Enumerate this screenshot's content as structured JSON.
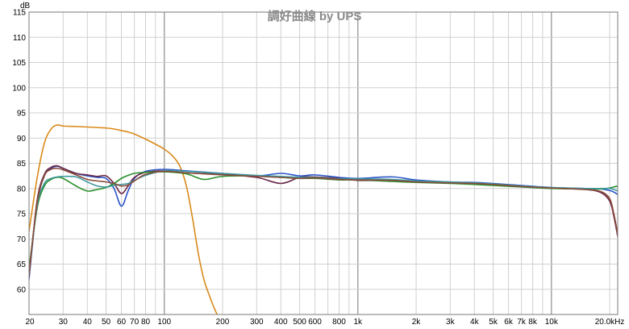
{
  "chart_data": {
    "type": "line",
    "title": "調好曲線 by UPS",
    "y_unit": "dB",
    "x_scale": "log",
    "xlim": [
      20,
      22000
    ],
    "ylim": [
      55,
      115
    ],
    "grid": true,
    "x_ticks": [
      {
        "value": 20,
        "label": "20"
      },
      {
        "value": 30,
        "label": "30"
      },
      {
        "value": 40,
        "label": "40"
      },
      {
        "value": 50,
        "label": "50"
      },
      {
        "value": 60,
        "label": "60"
      },
      {
        "value": 70,
        "label": "70"
      },
      {
        "value": 80,
        "label": "80"
      },
      {
        "value": 100,
        "label": "100"
      },
      {
        "value": 200,
        "label": "200"
      },
      {
        "value": 300,
        "label": "300"
      },
      {
        "value": 400,
        "label": "400"
      },
      {
        "value": 500,
        "label": "500"
      },
      {
        "value": 600,
        "label": "600"
      },
      {
        "value": 800,
        "label": "800"
      },
      {
        "value": 1000,
        "label": "1k"
      },
      {
        "value": 2000,
        "label": "2k"
      },
      {
        "value": 3000,
        "label": "3k"
      },
      {
        "value": 4000,
        "label": "4k"
      },
      {
        "value": 5000,
        "label": "5k"
      },
      {
        "value": 6000,
        "label": "6k"
      },
      {
        "value": 7000,
        "label": "7k"
      },
      {
        "value": 8000,
        "label": "8k"
      },
      {
        "value": 10000,
        "label": "10k"
      },
      {
        "value": 20000,
        "label": "20.0kHz"
      }
    ],
    "y_ticks": [
      60,
      65,
      70,
      75,
      80,
      85,
      90,
      95,
      100,
      105,
      110,
      115
    ],
    "series": [
      {
        "color": "#d98a1a",
        "x": [
          20,
          22,
          24,
          26,
          28,
          30,
          35,
          40,
          45,
          50,
          55,
          60,
          65,
          70,
          80,
          90,
          100,
          110,
          120,
          130,
          140,
          150,
          160,
          170,
          180,
          190
        ],
        "y": [
          71.5,
          82,
          89,
          91.8,
          92.6,
          92.4,
          92.3,
          92.2,
          92.1,
          92,
          91.8,
          91.5,
          91.2,
          90.8,
          89.8,
          88.8,
          87.8,
          86.5,
          84.5,
          80.5,
          74,
          67,
          62,
          59,
          56.5,
          54.5
        ]
      },
      {
        "color": "#2a55c8",
        "x": [
          20,
          22,
          24,
          26,
          28,
          30,
          35,
          40,
          45,
          50,
          55,
          60,
          65,
          70,
          80,
          100,
          130,
          200,
          300,
          400,
          500,
          600,
          800,
          1000,
          1500,
          2000,
          3000,
          4000,
          5000,
          7000,
          10000,
          15000,
          18000,
          20000,
          21000,
          22000
        ],
        "y": [
          62,
          77,
          82.5,
          84,
          84.4,
          84,
          83,
          82.5,
          82.2,
          82,
          80,
          76.5,
          79.5,
          82,
          83.4,
          83.8,
          83.5,
          83,
          82.5,
          83,
          82.5,
          82.7,
          82.2,
          82,
          82.3,
          81.7,
          81.3,
          81.2,
          81,
          80.6,
          80.2,
          80,
          79.9,
          79.6,
          79.3,
          78.8
        ]
      },
      {
        "color": "#6a2848",
        "x": [
          20,
          22,
          24,
          26,
          28,
          30,
          35,
          40,
          45,
          50,
          55,
          60,
          65,
          70,
          80,
          100,
          130,
          200,
          300,
          400,
          500,
          600,
          800,
          1000,
          1500,
          2000,
          3000,
          4000,
          5000,
          7000,
          10000,
          15000,
          18000,
          20000,
          21000,
          22000
        ],
        "y": [
          62.5,
          77.5,
          82.8,
          84.2,
          84.5,
          84,
          83,
          82.7,
          82.4,
          82.5,
          81,
          79,
          80.5,
          82.2,
          83.2,
          83.5,
          83.1,
          82.8,
          82.2,
          81,
          82.2,
          82.3,
          82,
          81.6,
          81.6,
          81.3,
          81.2,
          81,
          80.8,
          80.4,
          80.1,
          79.8,
          79.2,
          77.5,
          74.5,
          70.5
        ]
      },
      {
        "color": "#2a8f2a",
        "x": [
          20,
          22,
          24,
          26,
          28,
          30,
          35,
          40,
          45,
          50,
          55,
          60,
          65,
          70,
          80,
          100,
          130,
          160,
          200,
          300,
          400,
          500,
          600,
          800,
          1000,
          1500,
          2000,
          3000,
          4000,
          5000,
          7000,
          10000,
          15000,
          18000,
          20000,
          21000,
          22000
        ],
        "y": [
          64,
          76,
          80.5,
          81.8,
          82.2,
          82,
          80.5,
          79.5,
          79.8,
          80.2,
          81,
          82,
          82.6,
          83,
          83.2,
          83.3,
          82.9,
          81.8,
          82.4,
          82.5,
          82.2,
          82,
          82,
          81.7,
          81.7,
          81.4,
          81.2,
          81,
          80.8,
          80.6,
          80.3,
          80,
          79.9,
          79.9,
          80.1,
          80.3,
          80.5
        ]
      },
      {
        "color": "#3e9aa0",
        "x": [
          20,
          22,
          24,
          26,
          28,
          30,
          35,
          40,
          45,
          50,
          55,
          60,
          65,
          70,
          80,
          100,
          130,
          200,
          300,
          400,
          500,
          600,
          800,
          1000,
          1500,
          2000,
          3000,
          4000,
          5000,
          7000,
          10000,
          15000,
          18000,
          20000,
          21000,
          22000
        ],
        "y": [
          63,
          76.5,
          81,
          82,
          82.3,
          82.4,
          82.3,
          81.3,
          80.5,
          80.3,
          80.6,
          80.8,
          81,
          81.6,
          82.6,
          83.5,
          83.4,
          83,
          82.6,
          82.4,
          82.2,
          82.2,
          81.9,
          81.9,
          81.8,
          81.5,
          81.3,
          81.1,
          80.9,
          80.5,
          80.2,
          80,
          80,
          80,
          79.8,
          79.5
        ]
      },
      {
        "color": "#8a4a3a",
        "x": [
          20,
          22,
          24,
          26,
          28,
          30,
          35,
          40,
          45,
          50,
          55,
          60,
          65,
          70,
          80,
          100,
          130,
          200,
          300,
          400,
          500,
          600,
          800,
          1000,
          1500,
          2000,
          3000,
          4000,
          5000,
          7000,
          10000,
          15000,
          18000,
          20000,
          21000,
          22000
        ],
        "y": [
          63,
          77,
          82.5,
          83.8,
          84,
          83.7,
          82.7,
          81.8,
          81.5,
          81.3,
          81,
          80.5,
          80.7,
          81.5,
          82.8,
          83.4,
          83.1,
          82.7,
          82.4,
          82.2,
          82,
          82.1,
          81.8,
          81.7,
          81.6,
          81.3,
          81.1,
          81,
          80.8,
          80.4,
          80.1,
          79.8,
          79.4,
          78,
          75,
          71
        ]
      }
    ]
  }
}
